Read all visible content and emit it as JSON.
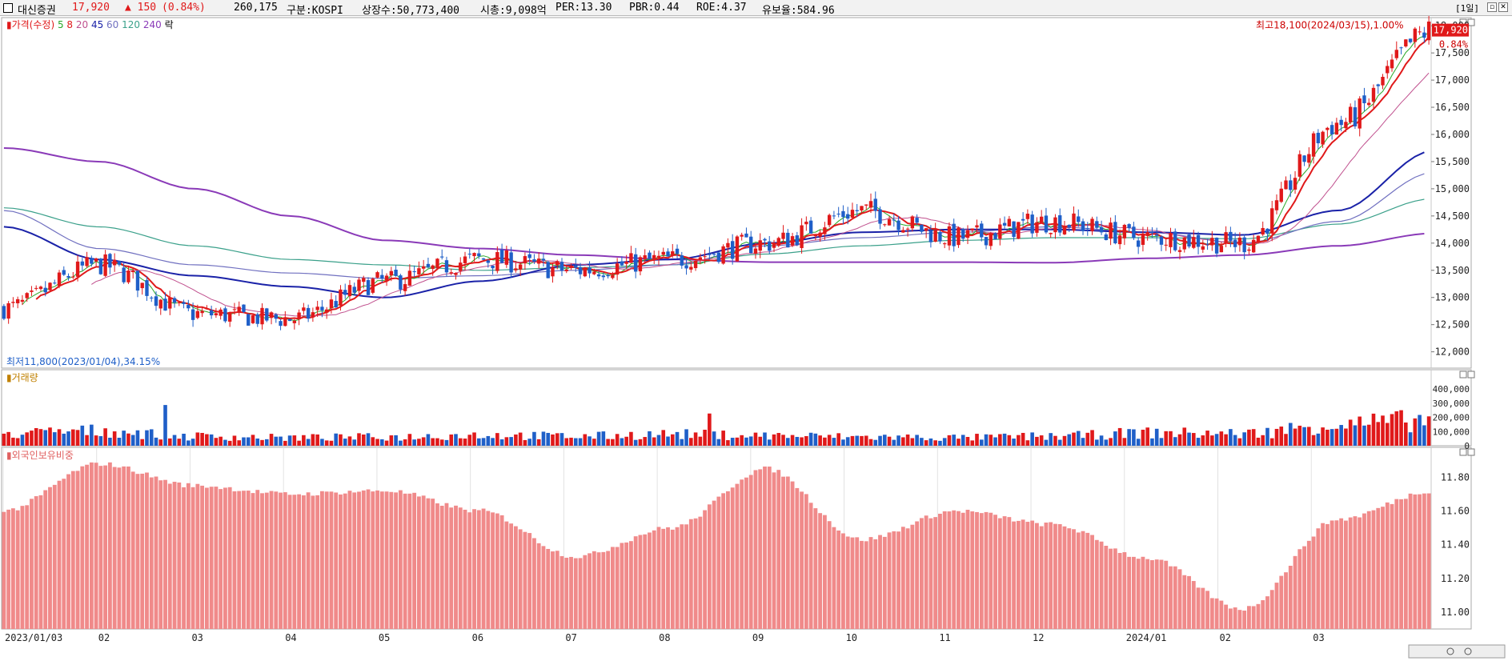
{
  "header": {
    "name": "대신증권",
    "price": "17,920",
    "change": "▲ 150",
    "change_pct": "(0.84%)",
    "volume": "260,175",
    "market": "구분:KOSPI",
    "shares": "상장수:50,773,400",
    "mcap": "시총:9,098억",
    "per": "PER:13.30",
    "pbr": "PBR:0.44",
    "roe": "ROE:4.37",
    "float": "유보율:584.96",
    "period_btn": "[1일]"
  },
  "colors": {
    "up": "#e0191a",
    "down": "#1f5fc8",
    "foreign": "#f08a8a",
    "ma5": "#28a828",
    "ma8": "#e0191a",
    "ma20": "#c0508e",
    "ma45": "#1a22a8",
    "ma60": "#7070c0",
    "ma120": "#3aa08a",
    "ma240": "#8a3ab8"
  },
  "chart_data": [
    {
      "type": "candlestick",
      "legend": [
        "가격(수정)",
        "5",
        "8",
        "20",
        "45",
        "60",
        "120",
        "240",
        "락"
      ],
      "y_ticks": [
        "18,000",
        "17,500",
        "17,000",
        "16,500",
        "16,000",
        "15,500",
        "15,000",
        "14,500",
        "14,000",
        "13,500",
        "13,000",
        "12,500",
        "12,000"
      ],
      "ylim": [
        11700,
        18150
      ],
      "current_price_tag": "17,920",
      "current_pct_tag": "0.84%",
      "high_annotation": "최고18,100(2024/03/15),1.00%",
      "low_annotation": "최저11,800(2023/01/04),34.15%",
      "x_labels": [
        "2023/01/03",
        "02",
        "03",
        "04",
        "05",
        "06",
        "07",
        "08",
        "09",
        "10",
        "11",
        "12",
        "2024/01",
        "02",
        "03"
      ],
      "monthly_close": [
        12800,
        13600,
        12700,
        12600,
        13300,
        13700,
        13500,
        13700,
        14000,
        14600,
        14100,
        14400,
        14100,
        14000,
        16200,
        17920
      ],
      "ma240": [
        15750,
        15500,
        15000,
        14500,
        14050,
        13900,
        13780,
        13700,
        13650,
        13650,
        13650,
        13640,
        13720,
        13780,
        13950,
        14180
      ],
      "ma120": [
        14650,
        14300,
        13950,
        13700,
        13600,
        13500,
        13550,
        13600,
        13800,
        13950,
        14050,
        14100,
        14100,
        14080,
        14350,
        14820
      ],
      "ma60": [
        14600,
        13900,
        13600,
        13450,
        13350,
        13400,
        13500,
        13600,
        13950,
        14100,
        14200,
        14300,
        14200,
        14000,
        14400,
        15300
      ],
      "ma45": [
        14300,
        13700,
        13400,
        13200,
        13000,
        13300,
        13600,
        13700,
        14000,
        14200,
        14250,
        14250,
        14200,
        14150,
        14600,
        15700
      ]
    },
    {
      "type": "bar",
      "title": "거래량",
      "y_ticks": [
        "400,000",
        "300,000",
        "200,000",
        "100,000",
        "0"
      ],
      "ylim": [
        0,
        480000
      ],
      "monthly_volume": [
        90000,
        110000,
        70000,
        60000,
        65000,
        80000,
        70000,
        85000,
        75000,
        65000,
        60000,
        70000,
        95000,
        90000,
        160000,
        190000
      ]
    },
    {
      "type": "bar",
      "title": "외국인보유비중",
      "y_ticks": [
        "11.80",
        "11.60",
        "11.40",
        "11.20",
        "11.00"
      ],
      "ylim": [
        10.9,
        11.92
      ],
      "monthly_foreign": [
        11.6,
        11.88,
        11.75,
        11.7,
        11.72,
        11.6,
        11.33,
        11.5,
        11.85,
        11.43,
        11.6,
        11.52,
        11.32,
        11.02,
        11.55,
        11.72
      ]
    }
  ]
}
